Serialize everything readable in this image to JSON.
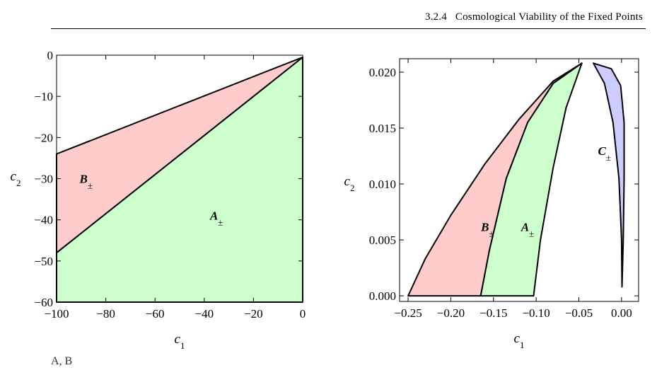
{
  "header": {
    "section": "3.2.4",
    "title": "Cosmological Viability of the Fixed Points"
  },
  "caption_fragment": "A, B",
  "colors": {
    "A": "#ccffcc",
    "B": "#ffcccc",
    "C": "#ccccff",
    "outline": "#000000"
  },
  "chart_data": [
    {
      "type": "area",
      "xlabel": "c1",
      "ylabel": "c2",
      "xlim": [
        -100,
        0
      ],
      "ylim": [
        -60,
        0
      ],
      "xticks": [
        -100,
        -80,
        -60,
        -40,
        -20,
        0
      ],
      "xtick_labels": [
        "−100",
        "−80",
        "−60",
        "−40",
        "−20",
        "0"
      ],
      "yticks": [
        0,
        -10,
        -20,
        -30,
        -40,
        -50,
        -60
      ],
      "ytick_labels": [
        "0",
        "−10",
        "−20",
        "−30",
        "−40",
        "−50",
        "−60"
      ],
      "regions": [
        {
          "name": "A±",
          "color": "#ccffcc",
          "polygon": [
            [
              -100,
              -60
            ],
            [
              0,
              -60
            ],
            [
              0,
              -0.5
            ],
            [
              -100,
              -48
            ]
          ],
          "label_at": [
            -35,
            -40
          ]
        },
        {
          "name": "B±",
          "color": "#ffcccc",
          "polygon": [
            [
              -100,
              -48
            ],
            [
              0,
              -0.5
            ],
            [
              -100,
              -24
            ]
          ],
          "label_at": [
            -88,
            -31
          ]
        }
      ]
    },
    {
      "type": "area",
      "xlabel": "c1",
      "ylabel": "c2",
      "xlim": [
        -0.26,
        0.02
      ],
      "ylim": [
        -0.0005,
        0.0212
      ],
      "xticks": [
        -0.25,
        -0.2,
        -0.15,
        -0.1,
        -0.05,
        0.0
      ],
      "xtick_labels": [
        "−0.25",
        "−0.20",
        "−0.15",
        "−0.10",
        "−0.05",
        "0.00"
      ],
      "yticks": [
        0.0,
        0.005,
        0.01,
        0.015,
        0.02
      ],
      "ytick_labels": [
        "0.000",
        "0.005",
        "0.010",
        "0.015",
        "0.020"
      ],
      "regions": [
        {
          "name": "B±",
          "color": "#ffcccc",
          "boundary": [
            [
              -0.25,
              0.0
            ],
            [
              -0.165,
              0.0
            ],
            [
              -0.155,
              0.004
            ],
            [
              -0.135,
              0.0105
            ],
            [
              -0.11,
              0.0155
            ],
            [
              -0.08,
              0.019
            ],
            [
              -0.0465,
              0.0208
            ],
            [
              -0.08,
              0.0192
            ],
            [
              -0.12,
              0.0158
            ],
            [
              -0.16,
              0.0118
            ],
            [
              -0.2,
              0.0072
            ],
            [
              -0.23,
              0.0033
            ],
            [
              -0.25,
              0.0
            ]
          ],
          "label_at": [
            -0.157,
            0.0058
          ]
        },
        {
          "name": "A±",
          "color": "#ccffcc",
          "boundary": [
            [
              -0.165,
              0.0
            ],
            [
              -0.103,
              0.0
            ],
            [
              -0.095,
              0.005
            ],
            [
              -0.08,
              0.0115
            ],
            [
              -0.065,
              0.0168
            ],
            [
              -0.0465,
              0.0208
            ],
            [
              -0.08,
              0.019
            ],
            [
              -0.11,
              0.0155
            ],
            [
              -0.135,
              0.0105
            ],
            [
              -0.155,
              0.004
            ],
            [
              -0.165,
              0.0
            ]
          ],
          "label_at": [
            -0.11,
            0.0058
          ]
        },
        {
          "name": "C±",
          "color": "#ccccff",
          "boundary": [
            [
              -0.033,
              0.0208
            ],
            [
              -0.02,
              0.019
            ],
            [
              -0.01,
              0.0155
            ],
            [
              -0.003,
              0.0105
            ],
            [
              0.0,
              0.005
            ],
            [
              0.0005,
              0.0008
            ],
            [
              0.002,
              0.005
            ],
            [
              0.003,
              0.0105
            ],
            [
              0.003,
              0.0155
            ],
            [
              -0.001,
              0.0188
            ],
            [
              -0.012,
              0.0203
            ],
            [
              -0.033,
              0.0208
            ]
          ],
          "label_at": [
            -0.02,
            0.0126
          ]
        }
      ]
    }
  ]
}
